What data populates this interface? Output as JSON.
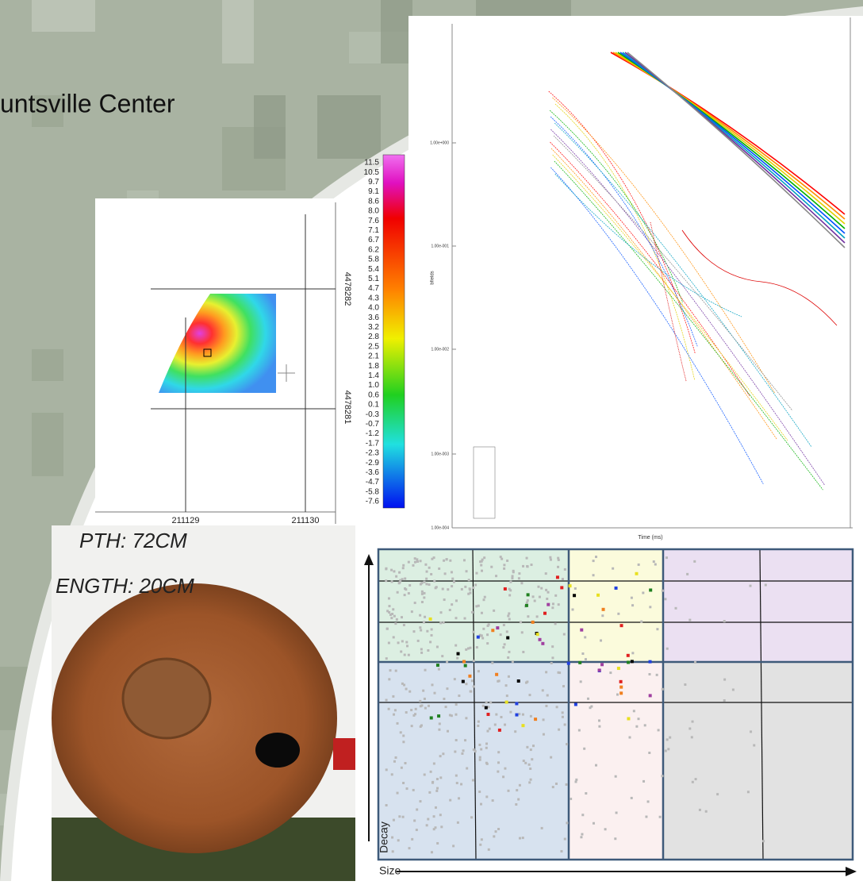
{
  "title": "untsville Center",
  "contour_map": {
    "colorbar_labels": [
      "11.5",
      "10.5",
      "9.7",
      "9.1",
      "8.6",
      "8.0",
      "7.6",
      "7.1",
      "6.7",
      "6.2",
      "5.8",
      "5.4",
      "5.1",
      "4.7",
      "4.3",
      "4.0",
      "3.6",
      "3.2",
      "2.8",
      "2.5",
      "2.1",
      "1.8",
      "1.4",
      "1.0",
      "0.6",
      "0.1",
      "-0.3",
      "-0.7",
      "-1.2",
      "-1.7",
      "-2.3",
      "-2.9",
      "-3.6",
      "-4.7",
      "-5.8",
      "-7.6"
    ],
    "y_labels": [
      "4478282",
      "4478281"
    ],
    "x_labels": [
      "211129",
      "211130"
    ]
  },
  "decay_plot": {
    "y_labels": [
      "1.00e+000",
      "1.00e-001",
      "1.00e-002",
      "1.00e-003",
      "1.00e-004"
    ],
    "x_label": "Time (ms)",
    "y_label": "bfields"
  },
  "photo": {
    "lines": [
      "PTH: 72CM",
      "ENGTH: 20CM"
    ]
  },
  "feature_space": {
    "y_label": "Decay",
    "x_label": "Size"
  }
}
